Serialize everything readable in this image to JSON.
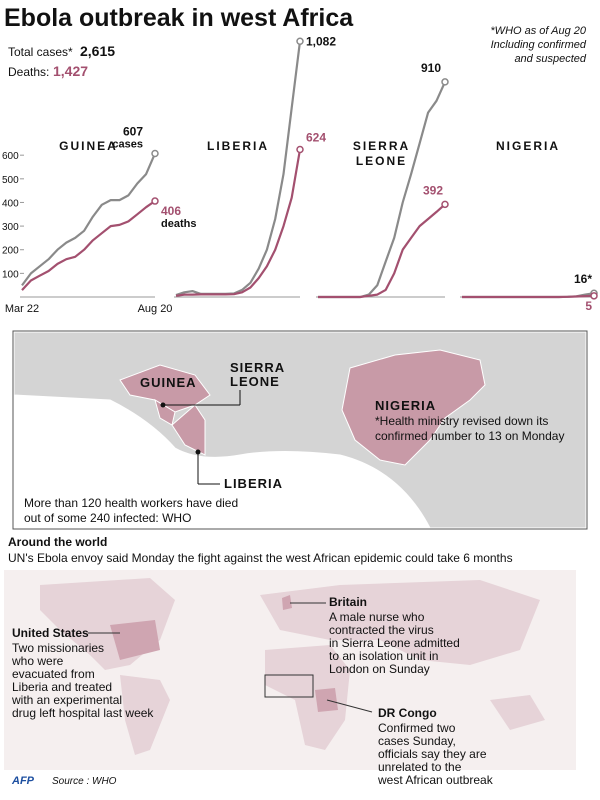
{
  "header": {
    "title": "Ebola outbreak in west Africa",
    "note": [
      "*WHO as of Aug 20",
      "Including confirmed",
      "and suspected"
    ],
    "total_label": "Total cases*",
    "total": "2,615",
    "deaths_label": "Deaths:",
    "deaths": "1,427"
  },
  "chart_data": [
    {
      "type": "line",
      "title": [
        "GUINEA"
      ],
      "categories": [
        "Mar 22",
        null,
        null,
        null,
        null,
        null,
        null,
        null,
        null,
        null,
        null,
        null,
        null,
        null,
        null,
        "Aug 20"
      ],
      "ylim": [
        0,
        1100
      ],
      "yticks": [
        100,
        200,
        300,
        400,
        500,
        600
      ],
      "series": [
        {
          "name": "cases",
          "color": "#8a8a8a",
          "values": [
            49,
            100,
            130,
            160,
            200,
            230,
            250,
            280,
            340,
            390,
            410,
            410,
            430,
            480,
            520,
            607
          ],
          "value_labels": [
            null,
            null,
            null,
            null,
            null,
            null,
            null,
            null,
            null,
            null,
            null,
            null,
            null,
            null,
            null,
            "607"
          ]
        },
        {
          "name": "deaths",
          "color": "#a3506f",
          "values": [
            29,
            70,
            90,
            110,
            140,
            160,
            170,
            200,
            240,
            270,
            300,
            305,
            320,
            350,
            380,
            406
          ],
          "value_labels": [
            null,
            null,
            null,
            null,
            null,
            null,
            null,
            null,
            null,
            null,
            null,
            null,
            null,
            null,
            null,
            "406"
          ]
        }
      ]
    },
    {
      "type": "line",
      "title": [
        "LIBERIA"
      ],
      "ylim": [
        0,
        1100
      ],
      "series": [
        {
          "color": "#8a8a8a",
          "values": [
            8,
            20,
            25,
            13,
            13,
            13,
            13,
            15,
            30,
            60,
            120,
            200,
            330,
            520,
            800,
            1082
          ],
          "value_labels": [
            null,
            null,
            null,
            null,
            null,
            null,
            null,
            null,
            null,
            null,
            null,
            null,
            null,
            null,
            null,
            "1,082"
          ]
        },
        {
          "color": "#a3506f",
          "values": [
            5,
            10,
            10,
            11,
            11,
            11,
            11,
            12,
            20,
            40,
            80,
            130,
            200,
            300,
            420,
            624
          ],
          "value_labels": [
            null,
            null,
            null,
            null,
            null,
            null,
            null,
            null,
            null,
            null,
            null,
            null,
            null,
            null,
            null,
            "624"
          ]
        }
      ]
    },
    {
      "type": "line",
      "title": [
        "SIERRA",
        "LEONE"
      ],
      "ylim": [
        0,
        1100
      ],
      "series": [
        {
          "color": "#8a8a8a",
          "values": [
            0,
            0,
            0,
            0,
            0,
            0,
            10,
            50,
            150,
            250,
            400,
            520,
            650,
            780,
            830,
            910
          ],
          "value_labels": [
            null,
            null,
            null,
            null,
            null,
            null,
            null,
            null,
            null,
            null,
            null,
            null,
            null,
            null,
            null,
            "910"
          ]
        },
        {
          "color": "#a3506f",
          "values": [
            0,
            0,
            0,
            0,
            0,
            0,
            5,
            10,
            30,
            100,
            200,
            250,
            300,
            330,
            360,
            392
          ],
          "value_labels": [
            null,
            null,
            null,
            null,
            null,
            null,
            null,
            null,
            null,
            null,
            null,
            null,
            null,
            null,
            null,
            "392"
          ]
        }
      ]
    },
    {
      "type": "line",
      "title": [
        "NIGERIA"
      ],
      "ylim": [
        0,
        1100
      ],
      "series": [
        {
          "color": "#8a8a8a",
          "values": [
            0,
            0,
            0,
            0,
            0,
            0,
            0,
            0,
            0,
            0,
            0,
            0,
            1,
            3,
            10,
            16
          ],
          "value_labels": [
            null,
            null,
            null,
            null,
            null,
            null,
            null,
            null,
            null,
            null,
            null,
            null,
            null,
            null,
            null,
            "16*"
          ]
        },
        {
          "color": "#a3506f",
          "values": [
            0,
            0,
            0,
            0,
            0,
            0,
            0,
            0,
            0,
            0,
            0,
            0,
            1,
            2,
            4,
            5
          ],
          "value_labels": [
            null,
            null,
            null,
            null,
            null,
            null,
            null,
            null,
            null,
            null,
            null,
            null,
            null,
            null,
            null,
            "5"
          ]
        }
      ]
    }
  ],
  "map": {
    "guinea": "GUINEA",
    "sierra_leone": [
      "SIERRA",
      "LEONE"
    ],
    "liberia": "LIBERIA",
    "nigeria": "NIGERIA",
    "nigeria_note": [
      "*Health ministry revised down its",
      "confirmed number to 13 on Monday"
    ],
    "health_workers": [
      "More than 120 health workers have died",
      "out of some 240 infected: WHO"
    ]
  },
  "world": {
    "heading": "Around the world",
    "subtitle": "UN's Ebola envoy said Monday the fight against the west African epidemic could take 6 months",
    "britain": {
      "title": "Britain",
      "text": [
        "A male nurse who",
        "contracted the virus",
        "in Sierra Leone admitted",
        "to an isolation unit in",
        "London on Sunday"
      ]
    },
    "us": {
      "title": "United States",
      "text": [
        "Two missionaries",
        "who were",
        "evacuated from",
        "Liberia and treated",
        "with an experimental",
        "drug left hospital last week"
      ]
    },
    "drc": {
      "title": "DR Congo",
      "text": [
        "Confirmed two",
        "cases Sunday,",
        "officials say they are",
        "unrelated to the",
        "west African outbreak"
      ]
    }
  },
  "footer": {
    "agency": "AFP",
    "source": "Source : WHO"
  }
}
